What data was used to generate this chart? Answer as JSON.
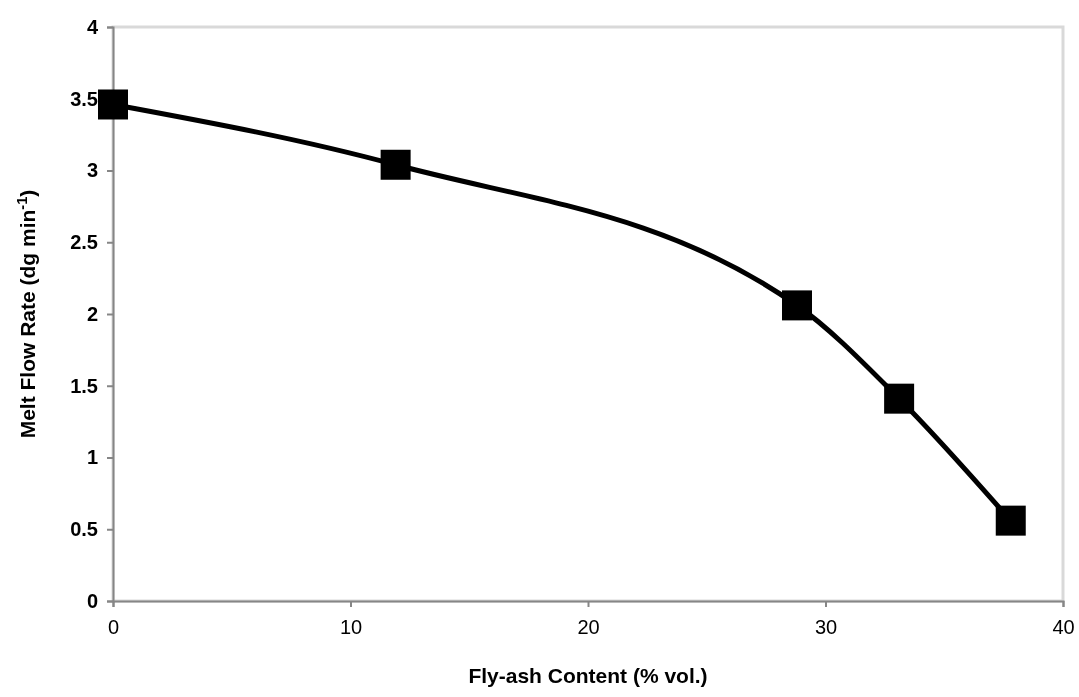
{
  "chart_data": {
    "type": "line",
    "xlabel": "Fly-ash Content (% vol.)",
    "ylabel": "Melt Flow Rate (dg min$^{-1}$)",
    "x": [
      0,
      11.9,
      28.8,
      33.1,
      37.8
    ],
    "series": [
      {
        "color": "#000000",
        "values": [
          3.46,
          3.04,
          2.06,
          1.41,
          0.56
        ]
      }
    ],
    "xlim": [
      0,
      40
    ],
    "xticks": [
      0,
      10,
      20,
      30,
      40
    ],
    "ylim": [
      0,
      4
    ],
    "yticks": [
      0,
      {
        "value": 0.5,
        "label": "0.5"
      },
      1,
      {
        "value": 1.5,
        "label": "1.5"
      },
      2,
      {
        "value": 2.5,
        "label": "2.5"
      },
      3,
      {
        "value": 3.5,
        "label": "3.5"
      },
      4
    ],
    "marker": "square",
    "line_style": "solid"
  }
}
